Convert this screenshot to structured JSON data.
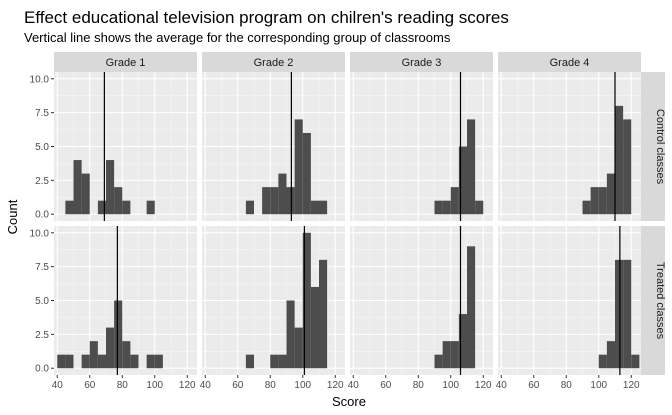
{
  "chart_data": {
    "type": "histogram-facets",
    "title": "Effect educational television program on chilren's reading scores",
    "subtitle": "Vertical line shows the average for the corresponding group of classrooms",
    "xlabel": "Score",
    "ylabel": "Count",
    "xlim": [
      38,
      126
    ],
    "ylim": [
      -0.5,
      10.5
    ],
    "x_ticks": [
      "40",
      "60",
      "80",
      "100",
      "120"
    ],
    "y_ticks": [
      "0.0",
      "2.5",
      "5.0",
      "7.5",
      "10.0"
    ],
    "bin_width": 5,
    "columns": [
      "Grade 1",
      "Grade 2",
      "Grade 3",
      "Grade 4"
    ],
    "rows": [
      "Control classes",
      "Treated classes"
    ],
    "bar_color": "#4d4d4d",
    "panel_bg": "#ebebeb",
    "strip_bg": "#d9d9d9",
    "panels": [
      {
        "grade": "Grade 1",
        "group": "Control classes",
        "mean": 69,
        "bins": [
          [
            47.5,
            1
          ],
          [
            52.5,
            4
          ],
          [
            57.5,
            3
          ],
          [
            67.5,
            1
          ],
          [
            72.5,
            4
          ],
          [
            77.5,
            2
          ],
          [
            82.5,
            1
          ],
          [
            87.5,
            0
          ],
          [
            92.5,
            0
          ],
          [
            97.5,
            1
          ]
        ]
      },
      {
        "grade": "Grade 2",
        "group": "Control classes",
        "mean": 93,
        "bins": [
          [
            67.5,
            1
          ],
          [
            72.5,
            0
          ],
          [
            77.5,
            2
          ],
          [
            82.5,
            2
          ],
          [
            87.5,
            3
          ],
          [
            92.5,
            2
          ],
          [
            97.5,
            7
          ],
          [
            102.5,
            6
          ],
          [
            107.5,
            1
          ],
          [
            112.5,
            1
          ]
        ]
      },
      {
        "grade": "Grade 3",
        "group": "Control classes",
        "mean": 106,
        "bins": [
          [
            92.5,
            1
          ],
          [
            97.5,
            1
          ],
          [
            102.5,
            2
          ],
          [
            107.5,
            5
          ],
          [
            112.5,
            7
          ],
          [
            117.5,
            1
          ]
        ]
      },
      {
        "grade": "Grade 4",
        "group": "Control classes",
        "mean": 110,
        "bins": [
          [
            92.5,
            1
          ],
          [
            97.5,
            2
          ],
          [
            102.5,
            2
          ],
          [
            107.5,
            3
          ],
          [
            112.5,
            8
          ],
          [
            117.5,
            7
          ]
        ]
      },
      {
        "grade": "Grade 1",
        "group": "Treated classes",
        "mean": 77,
        "bins": [
          [
            42.5,
            1
          ],
          [
            47.5,
            1
          ],
          [
            57.5,
            1
          ],
          [
            62.5,
            2
          ],
          [
            67.5,
            1
          ],
          [
            72.5,
            3
          ],
          [
            77.5,
            5
          ],
          [
            82.5,
            2
          ],
          [
            87.5,
            1
          ],
          [
            97.5,
            1
          ],
          [
            102.5,
            1
          ]
        ]
      },
      {
        "grade": "Grade 2",
        "group": "Treated classes",
        "mean": 101,
        "bins": [
          [
            67.5,
            1
          ],
          [
            82.5,
            1
          ],
          [
            87.5,
            1
          ],
          [
            92.5,
            5
          ],
          [
            97.5,
            3
          ],
          [
            102.5,
            10
          ],
          [
            107.5,
            6
          ],
          [
            112.5,
            8
          ]
        ]
      },
      {
        "grade": "Grade 3",
        "group": "Treated classes",
        "mean": 106,
        "bins": [
          [
            92.5,
            1
          ],
          [
            97.5,
            2
          ],
          [
            102.5,
            2
          ],
          [
            107.5,
            4
          ],
          [
            112.5,
            9
          ]
        ]
      },
      {
        "grade": "Grade 4",
        "group": "Treated classes",
        "mean": 113,
        "bins": [
          [
            102.5,
            1
          ],
          [
            107.5,
            2
          ],
          [
            112.5,
            8
          ],
          [
            117.5,
            8
          ],
          [
            122.5,
            1
          ]
        ]
      }
    ]
  }
}
